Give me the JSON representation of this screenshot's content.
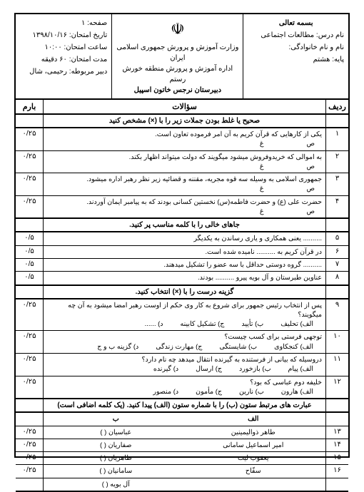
{
  "header": {
    "right": {
      "bismillah": "بسمه تعالی",
      "subject_label": "نام درس:",
      "subject": "مطالعات اجتماعی",
      "name_label": "نام و نام خانوادگی:",
      "grade_label": "پایه:",
      "grade": "هشتم"
    },
    "center": {
      "line1": "وزارت آموزش و پرورش جمهوری اسلامی ایران",
      "line2": "اداره آموزش و پرورش منطقه خورش رستم",
      "line3": "دبیرستان نرجس خاتون اسپیل"
    },
    "left": {
      "page_label": "صفحه:",
      "page": "۱",
      "date_label": "تاریخ امتحان:",
      "date": "۱۳۹۸/۱۰/۱۶",
      "time_label": "ساعت امتحان:",
      "time": "۱۰:۰۰",
      "duration_label": "مدت امتحان:",
      "duration": "۶۰ دقیقه",
      "teacher_label": "دبیر مربوطه:",
      "teacher": "رحیمی، شال"
    }
  },
  "title_row": {
    "radif": "ردیف",
    "q": "سؤالات",
    "score": "بارم"
  },
  "sections": [
    {
      "head": "صحیح یا غلط بودن جملات زیر را با (×) مشخص کنید",
      "rows": [
        {
          "n": "۱",
          "text": "یکی از کارهایی که قرآن کریم به آن امر فرموده تعاون است.",
          "tf": true,
          "score": "۰/۲۵"
        },
        {
          "n": "۲",
          "text": "به اموالی که خریدوفروش میشود میگویند که دولت میتواند اظهار بکند.",
          "tf": true,
          "score": "۰/۲۵"
        },
        {
          "n": "۳",
          "text": "جمهوری اسلامی به وسیله سه قوه مجریه، مقننه و قضائیه زیر نظر رهبر اداره میشود.",
          "tf": true,
          "score": "۰/۲۵"
        },
        {
          "n": "۴",
          "text": "حضرت علی (ع) و حضرت فاطمه(س) نخستین کسانی بودند که به پیامبر ایمان آوردند.",
          "tf": true,
          "score": "۰/۲۵"
        }
      ]
    },
    {
      "head": "جاهای خالی را با کلمه مناسب پر کنید.",
      "rows": [
        {
          "n": "۵",
          "text": ".......... یعنی همکاری و یاری رساندن به یکدیگر",
          "score": "۰/۵"
        },
        {
          "n": "۶",
          "text": "در قرآن کریم به .......... نامیده شده است.",
          "score": "۰/۵"
        },
        {
          "n": "۷",
          "text": ".......... گروه دوستی حداقل با سه عضو را تشکیل میدهند.",
          "score": "۰/۵"
        },
        {
          "n": "۸",
          "text": "عناوین طبرستان و آل بویه پیرو .......... بودند.",
          "score": "۰/۵"
        }
      ]
    },
    {
      "head": "گزینه درست را با (×) انتخاب کنید.",
      "rows": [
        {
          "n": "۹",
          "text": "پس از انتخاب رئیس جمهور برای شروع به کار وی حکم از اوست رهبر امضا میشود به آن چه میگویند؟",
          "opts": [
            "الف) تحلیف",
            "ب) تأیید",
            "ج) تشکیل کابینه",
            "د) ......"
          ],
          "score": "۰/۲۵"
        },
        {
          "n": "۱۰",
          "text": "توجهی فرستی برای کسب چیست؟",
          "opts": [
            "الف) کنجکاوی",
            "ب) شایستگی",
            "ج) مهارت زندگی",
            "د) گزینه ب و ج"
          ],
          "score": "۰/۲۵"
        },
        {
          "n": "۱۱",
          "text": "دروسیله که بیانی از فرستنده به گیرنده انتقال میدهد چه نام دارد؟",
          "opts": [
            "الف) پیام",
            "ب) بازخورد",
            "ج) ارسال",
            "د) گیرنده"
          ],
          "score": "۰/۲۵"
        },
        {
          "n": "۱۲",
          "text": "خلیفه دوم عباسی که بود؟",
          "opts": [
            "الف) هارون",
            "ب) نارین",
            "ج) مأمون",
            "د) منصور"
          ],
          "score": "۰/۲۵"
        }
      ]
    },
    {
      "head": "عبارت های مرتبط ستون (ب) را با شماره ستون (الف) پیدا کنید. (یک کلمه اضافی است)",
      "match": {
        "alef_head": "الف",
        "b_head": "ب",
        "rows": [
          {
            "n": "۱۳",
            "a": "طاهر ذوالیمینین",
            "b": "عباسیان (   )",
            "score": "۰/۲۵"
          },
          {
            "n": "۱۴",
            "a": "امیر اسماعیل سامانی",
            "b": "صفاریان (   )",
            "score": "۰/۲۵"
          },
          {
            "n": "۱۵",
            "a": "یعقوب لیث",
            "b": "طاهریان (   )",
            "score": "۰/۲۵"
          },
          {
            "n": "۱۶",
            "a": "سفّاح",
            "b": "سامانیان (   )",
            "score": "۰/۲۵"
          }
        ],
        "extra": "آل بویه (   )"
      }
    }
  ]
}
